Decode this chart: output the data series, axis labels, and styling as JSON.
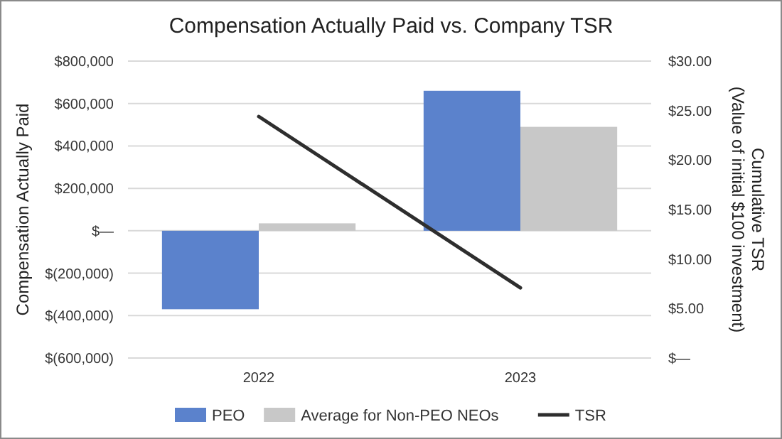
{
  "chart_data": {
    "type": "bar",
    "title": "Compensation Actually Paid vs. Company TSR",
    "ylabel": "Compensation Actually Paid",
    "y2label": "Cumulative TSR\n(Value of initial $100 investment)",
    "categories": [
      "2022",
      "2023"
    ],
    "series": [
      {
        "name": "PEO",
        "color": "#5b82cc",
        "values": [
          -370000,
          660000
        ]
      },
      {
        "name": "Average for Non-PEO NEOs",
        "color": "#c8c8c8",
        "values": [
          35000,
          490000
        ]
      },
      {
        "name": "TSR",
        "type": "line",
        "axis": "y2",
        "color": "#2e2e2e",
        "values": [
          24.4,
          7.1
        ]
      }
    ],
    "ylim": [
      -600000,
      800000
    ],
    "yticks": [
      {
        "value": -600000,
        "label": "$(600,000)"
      },
      {
        "value": -400000,
        "label": "$(400,000)"
      },
      {
        "value": -200000,
        "label": "$(200,000)"
      },
      {
        "value": 0,
        "label": "$—"
      },
      {
        "value": 200000,
        "label": "$200,000"
      },
      {
        "value": 400000,
        "label": "$400,000"
      },
      {
        "value": 600000,
        "label": "$600,000"
      },
      {
        "value": 800000,
        "label": "$800,000"
      }
    ],
    "y2lim": [
      0,
      30
    ],
    "y2ticks": [
      {
        "value": 0,
        "label": "$—"
      },
      {
        "value": 5,
        "label": "$5.00"
      },
      {
        "value": 10,
        "label": "$10.00"
      },
      {
        "value": 15,
        "label": "$15.00"
      },
      {
        "value": 20,
        "label": "$20.00"
      },
      {
        "value": 25,
        "label": "$25.00"
      },
      {
        "value": 30,
        "label": "$30.00"
      }
    ],
    "grid": "y",
    "legend": "bottom"
  }
}
